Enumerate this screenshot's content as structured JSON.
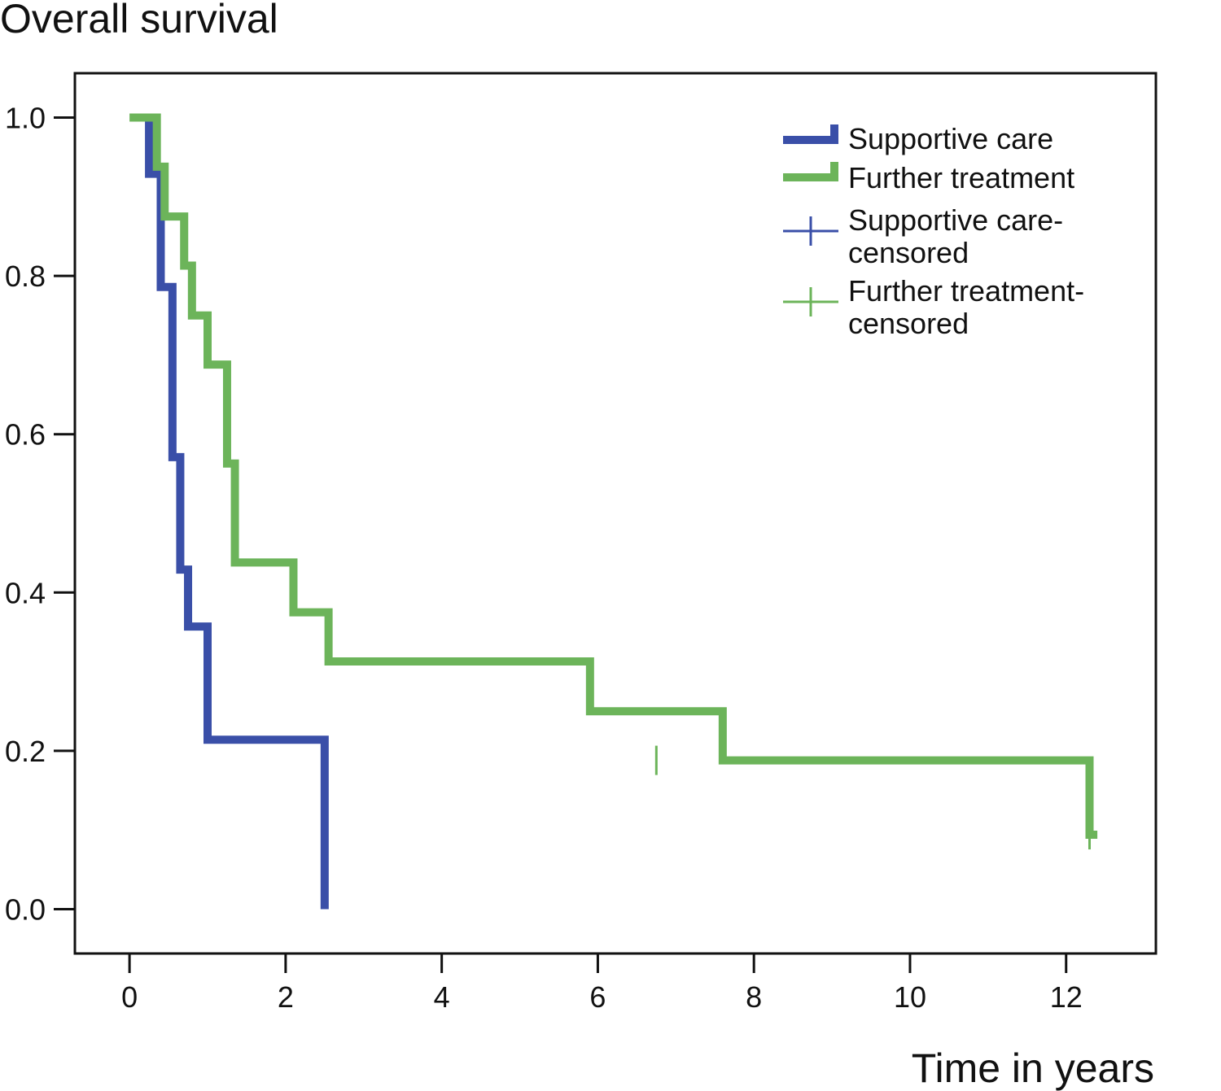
{
  "chart_data": {
    "type": "line",
    "title": "",
    "ylabel": "Overall survival",
    "xlabel": "Time in years",
    "xlim": [
      -0.7,
      13.15
    ],
    "ylim": [
      -0.056,
      1.056
    ],
    "xticks": [
      0,
      2,
      4,
      6,
      8,
      10,
      12
    ],
    "xtick_labels": [
      "0",
      "2",
      "4",
      "6",
      "8",
      "10",
      "12"
    ],
    "yticks": [
      0.0,
      0.2,
      0.4,
      0.6,
      0.8,
      1.0
    ],
    "ytick_labels": [
      "0.0",
      "0.2",
      "0.4",
      "0.6",
      "0.8",
      "1.0"
    ],
    "grid": false,
    "legend_position": "top-right",
    "legend": [
      {
        "label": "Supportive care",
        "kind": "line",
        "color": "#3a4fa8"
      },
      {
        "label": "Further treatment",
        "kind": "line",
        "color": "#6cb45a"
      },
      {
        "label": [
          "Supportive care-",
          "censored"
        ],
        "kind": "censor",
        "color": "#3a4fa8"
      },
      {
        "label": [
          "Further treatment-",
          "censored"
        ],
        "kind": "censor",
        "color": "#6cb45a"
      }
    ],
    "series": [
      {
        "name": "Supportive care",
        "color": "#3a4fa8",
        "step": true,
        "x": [
          0.15,
          0.25,
          0.4,
          0.55,
          0.65,
          0.75,
          1.0,
          2.5,
          2.5
        ],
        "y": [
          1.0,
          0.929,
          0.786,
          0.571,
          0.429,
          0.357,
          0.214,
          0.071,
          0.0
        ],
        "censored": []
      },
      {
        "name": "Further treatment",
        "color": "#6cb45a",
        "step": true,
        "x": [
          0.0,
          0.35,
          0.45,
          0.7,
          0.8,
          1.0,
          1.25,
          1.35,
          2.1,
          2.55,
          5.9,
          7.6,
          12.3
        ],
        "y": [
          1.0,
          0.938,
          0.875,
          0.813,
          0.75,
          0.688,
          0.563,
          0.438,
          0.375,
          0.313,
          0.25,
          0.188,
          0.094
        ],
        "end_x": 12.4,
        "censored": [
          [
            6.75,
            0.188
          ],
          [
            12.3,
            0.094
          ]
        ]
      }
    ]
  }
}
